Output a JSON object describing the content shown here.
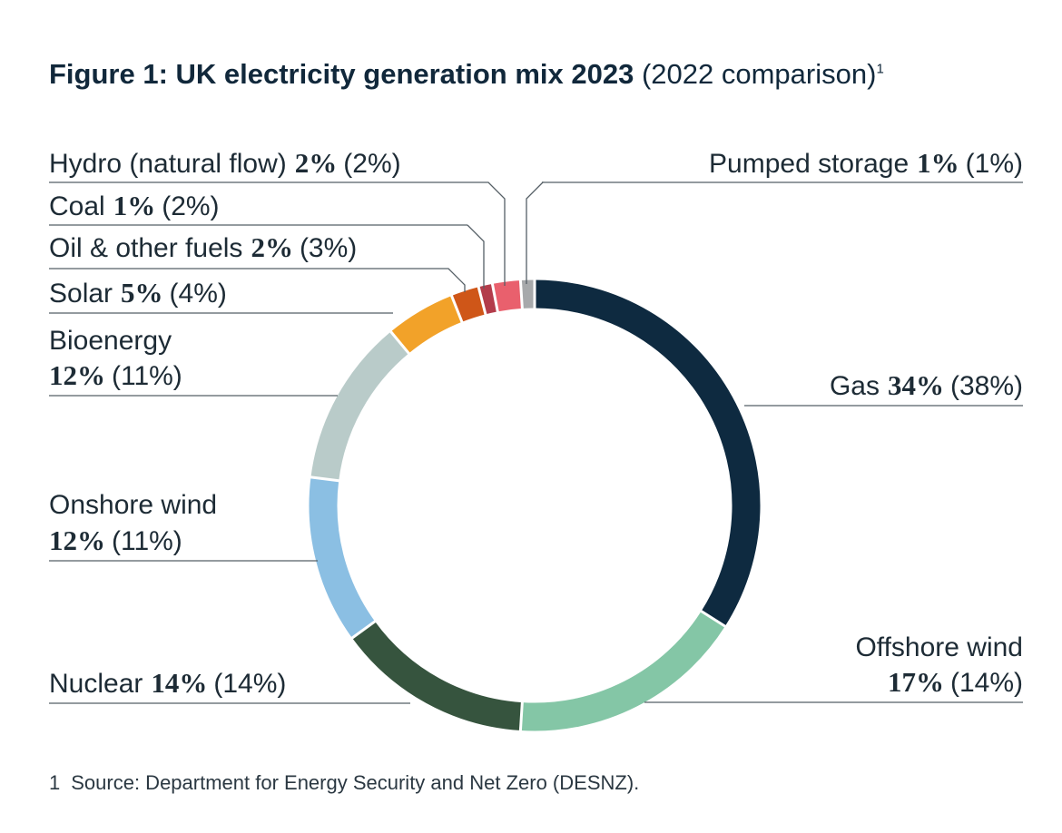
{
  "title": {
    "main": "Figure 1: UK electricity generation mix 2023",
    "comparison": "(2022 comparison)",
    "footnote_marker": "1"
  },
  "chart_data": {
    "type": "pie",
    "donut": true,
    "unit": "%",
    "slices": [
      {
        "label": "Gas",
        "value": 34,
        "comparison": 38,
        "value_text": "34%",
        "comparison_text": "(38%)",
        "color": "#0e2a40",
        "side": "right"
      },
      {
        "label": "Offshore wind",
        "value": 17,
        "comparison": 14,
        "value_text": "17%",
        "comparison_text": "(14%)",
        "color": "#84c6a6",
        "side": "right"
      },
      {
        "label": "Nuclear",
        "value": 14,
        "comparison": 14,
        "value_text": "14%",
        "comparison_text": "(14%)",
        "color": "#36543e",
        "side": "left"
      },
      {
        "label": "Onshore wind",
        "value": 12,
        "comparison": 11,
        "value_text": "12%",
        "comparison_text": "(11%)",
        "color": "#8bbfe3",
        "side": "left"
      },
      {
        "label": "Bioenergy",
        "value": 12,
        "comparison": 11,
        "value_text": "12%",
        "comparison_text": "(11%)",
        "color": "#b9cbc9",
        "side": "left"
      },
      {
        "label": "Solar",
        "value": 5,
        "comparison": 4,
        "value_text": "5%",
        "comparison_text": "(4%)",
        "color": "#f2a229",
        "side": "left"
      },
      {
        "label": "Oil & other fuels",
        "value": 2,
        "comparison": 3,
        "value_text": "2%",
        "comparison_text": "(3%)",
        "color": "#cf5618",
        "side": "left"
      },
      {
        "label": "Coal",
        "value": 1,
        "comparison": 2,
        "value_text": "1%",
        "comparison_text": "(2%)",
        "color": "#b33c4b",
        "side": "left"
      },
      {
        "label": "Hydro (natural flow)",
        "value": 2,
        "comparison": 2,
        "value_text": "2%",
        "comparison_text": "(2%)",
        "color": "#e9606d",
        "side": "left"
      },
      {
        "label": "Pumped storage",
        "value": 1,
        "comparison": 1,
        "value_text": "1%",
        "comparison_text": "(1%)",
        "color": "#a7a9ab",
        "side": "right"
      }
    ]
  },
  "footnote": {
    "number": "1",
    "text": "Source: Department for Energy Security and Net Zero (DESNZ)."
  }
}
